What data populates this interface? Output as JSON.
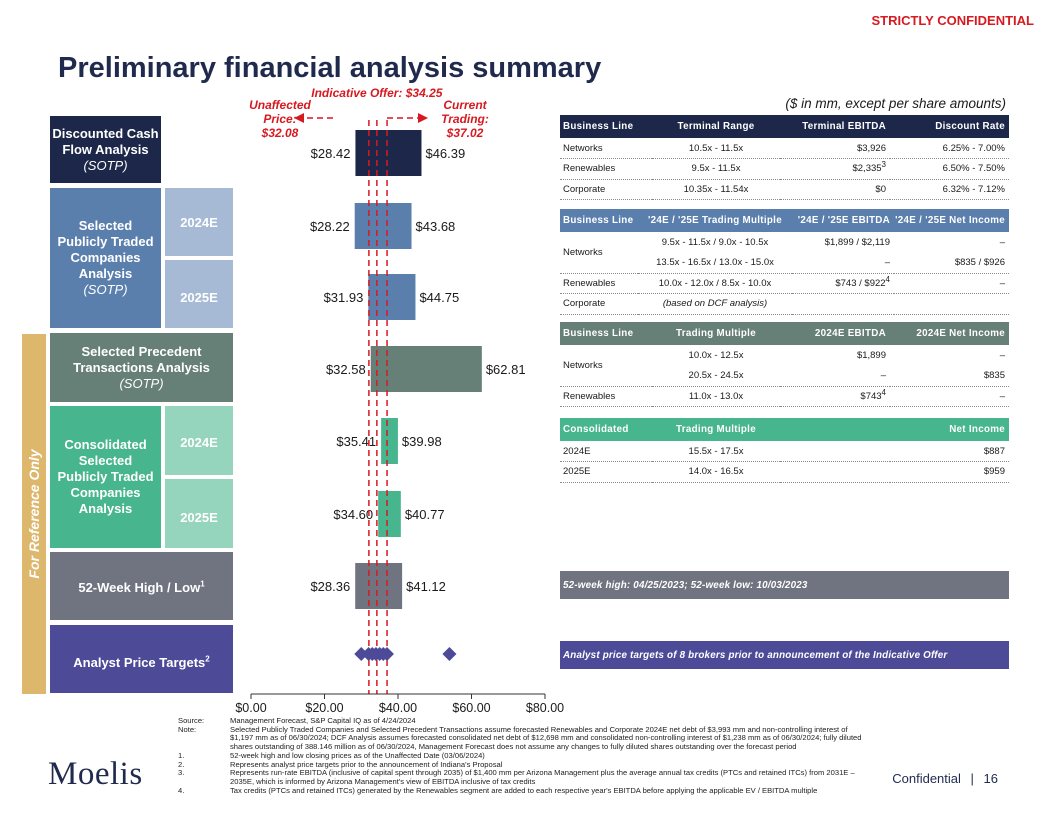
{
  "header": {
    "confidential": "STRICTLY CONFIDENTIAL",
    "title": "Preliminary financial analysis summary",
    "units": "($ in mm, except per share amounts)"
  },
  "sidebar_label": "For Reference Only",
  "rows": {
    "dcf": {
      "line1": "Discounted Cash",
      "line2": "Flow Analysis",
      "line3": "(SOTP)"
    },
    "sptc": {
      "line1": "Selected",
      "line2": "Publicly Traded",
      "line3": "Companies",
      "line4": "Analysis",
      "line5": "(SOTP)",
      "year1": "2024E",
      "year2": "2025E"
    },
    "spta": {
      "line1": "Selected Precedent",
      "line2": "Transactions Analysis",
      "line3": "(SOTP)"
    },
    "cons": {
      "line1": "Consolidated",
      "line2": "Selected",
      "line3": "Publicly Traded",
      "line4": "Companies",
      "line5": "Analysis",
      "year1": "2024E",
      "year2": "2025E"
    },
    "week52": {
      "label": "52-Week High / Low",
      "sup": "1"
    },
    "analyst": {
      "label": "Analyst Price Targets",
      "sup": "2"
    }
  },
  "colors": {
    "navy": "#1c2749",
    "steel": "#5b7fad",
    "steel_light": "#a6bad6",
    "slate_green": "#667f77",
    "green": "#47b58d",
    "green_light": "#95d4bd",
    "gray": "#6f7480",
    "purple": "#4d4b98",
    "red": "#d71920"
  },
  "chart_data": {
    "type": "football-field",
    "x_min": 0,
    "x_max": 80,
    "ticks": [
      "$0.00",
      "$20.00",
      "$40.00",
      "$60.00",
      "$80.00"
    ],
    "tick_values": [
      0,
      20,
      40,
      60,
      80
    ],
    "reference_lines": [
      {
        "name": "unaffected",
        "value": 32.08,
        "label1": "Unaffected",
        "label2": "Price:",
        "label3": "$32.08"
      },
      {
        "name": "indicative",
        "value": 34.25,
        "label1": "Indicative Offer: $34.25"
      },
      {
        "name": "current",
        "value": 37.02,
        "label1": "Current",
        "label2": "Trading:",
        "label3": "$37.02"
      }
    ],
    "bars": [
      {
        "name": "dcf",
        "low": 28.42,
        "high": 46.39,
        "low_label": "$28.42",
        "high_label": "$46.39",
        "color": "#1c2749"
      },
      {
        "name": "sptc-2024e",
        "low": 28.22,
        "high": 43.68,
        "low_label": "$28.22",
        "high_label": "$43.68",
        "color": "#5b7fad"
      },
      {
        "name": "sptc-2025e",
        "low": 31.93,
        "high": 44.75,
        "low_label": "$31.93",
        "high_label": "$44.75",
        "color": "#5b7fad"
      },
      {
        "name": "precedent",
        "low": 32.58,
        "high": 62.81,
        "low_label": "$32.58",
        "high_label": "$62.81",
        "color": "#667f77"
      },
      {
        "name": "cons-2024e",
        "low": 35.41,
        "high": 39.98,
        "low_label": "$35.41",
        "high_label": "$39.98",
        "color": "#47b58d"
      },
      {
        "name": "cons-2025e",
        "low": 34.6,
        "high": 40.77,
        "low_label": "$34.60",
        "high_label": "$40.77",
        "color": "#47b58d"
      },
      {
        "name": "52-week",
        "low": 28.36,
        "high": 41.12,
        "low_label": "$28.36",
        "high_label": "$41.12",
        "color": "#6f7480"
      }
    ],
    "analyst_targets": [
      30.0,
      32.0,
      33.0,
      34.0,
      35.0,
      36.0,
      37.0,
      54.0
    ]
  },
  "tables": {
    "dcf": {
      "headers": [
        "Business Line",
        "Terminal Range",
        "Terminal EBITDA",
        "Discount Rate"
      ],
      "rows": [
        {
          "c1": "Networks",
          "c2": "10.5x - 11.5x",
          "c3": "$3,926",
          "c3sup": "",
          "c4": "6.25% - 7.00%"
        },
        {
          "c1": "Renewables",
          "c2": "9.5x - 11.5x",
          "c3": "$2,335",
          "c3sup": "3",
          "c4": "6.50% - 7.50%"
        },
        {
          "c1": "Corporate",
          "c2": "10.35x - 11.54x",
          "c3": "$0",
          "c3sup": "",
          "c4": "6.32% - 7.12%"
        }
      ]
    },
    "sptc": {
      "headers": [
        "Business Line",
        "'24E / '25E Trading Multiple",
        "'24E / '25E EBITDA",
        "'24E / '25E Net Income"
      ],
      "networks_label": "Networks",
      "rows": [
        {
          "c2": "9.5x - 11.5x / 9.0x - 10.5x",
          "c3": "$1,899 / $2,119",
          "c4": "–"
        },
        {
          "c2": "13.5x - 16.5x / 13.0x - 15.0x",
          "c3": "–",
          "c4": "$835 / $926"
        },
        {
          "c1": "Renewables",
          "c2": "10.0x - 12.0x / 8.5x - 10.0x",
          "c3": "$743 / $922",
          "c3sup": "4",
          "c4": "–"
        },
        {
          "c1": "Corporate",
          "c2": "(based on DCF analysis)"
        }
      ]
    },
    "spta": {
      "headers": [
        "Business Line",
        "Trading Multiple",
        "2024E EBITDA",
        "2024E Net Income"
      ],
      "networks_label": "Networks",
      "rows": [
        {
          "c2": "10.0x - 12.5x",
          "c3": "$1,899",
          "c4": "–"
        },
        {
          "c2": "20.5x - 24.5x",
          "c3": "–",
          "c4": "$835"
        },
        {
          "c1": "Renewables",
          "c2": "11.0x - 13.0x",
          "c3": "$743",
          "c3sup": "4",
          "c4": "–"
        }
      ]
    },
    "cons": {
      "headers": [
        "Consolidated",
        "Trading Multiple",
        "",
        "Net Income"
      ],
      "rows": [
        {
          "c1": "2024E",
          "c2": "15.5x - 17.5x",
          "c4": "$887"
        },
        {
          "c1": "2025E",
          "c2": "14.0x - 16.5x",
          "c4": "$959"
        }
      ]
    }
  },
  "notes": {
    "week52": "52-week high: 04/25/2023; 52-week low: 10/03/2023",
    "analyst": "Analyst price targets of 8 brokers prior to announcement of the Indicative Offer"
  },
  "footnotes": [
    {
      "key": "Source:",
      "text": "Management Forecast, S&P Capital IQ as of 4/24/2024"
    },
    {
      "key": "Note:",
      "text": "Selected Publicly Traded Companies and Selected Precedent Transactions assume forecasted Renewables and Corporate 2024E net debt of $3,993 mm and non-controlling interest of $1,197 mm as of 06/30/2024; DCF Analysis assumes forecasted consolidated net debt of $12,698 mm and consolidated non-controlling interest of $1,238 mm as of 06/30/2024; fully diluted shares outstanding of 388.146 million as of 06/30/2024, Management Forecast does not assume any changes to fully diluted shares outstanding over the forecast period"
    },
    {
      "key": "1.",
      "text": "52-week high and low closing prices as of the Unaffected Date (03/06/2024)"
    },
    {
      "key": "2.",
      "text": "Represents analyst price targets prior to the announcement of Indiana's Proposal"
    },
    {
      "key": "3.",
      "text": "Represents run-rate EBITDA (inclusive of capital spent through 2035) of $1,400 mm per Arizona Management plus the average annual tax credits (PTCs and retained ITCs) from 2031E – 2035E, which is informed by Arizona Management's view of EBITDA inclusive of tax credits"
    },
    {
      "key": "4.",
      "text": "Tax credits (PTCs and retained ITCs) generated by the Renewables segment are added to each respective year's EBITDA before applying the applicable EV / EBITDA multiple"
    }
  ],
  "footer": {
    "logo": "Moelis",
    "confidential": "Confidential",
    "separator": "|",
    "page": "16"
  }
}
